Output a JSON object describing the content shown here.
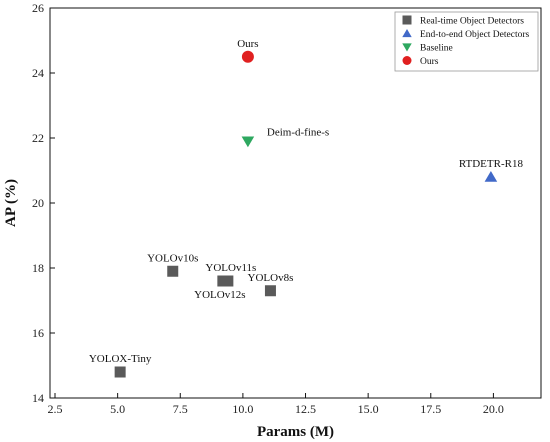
{
  "chart_data": {
    "type": "scatter",
    "title": "",
    "xlabel": "Params (M)",
    "ylabel": "AP (%)",
    "xlim": [
      2.3,
      21.9
    ],
    "ylim": [
      14,
      26
    ],
    "xticks": [
      "2.5",
      "5.0",
      "7.5",
      "10.0",
      "12.5",
      "15.0",
      "17.5",
      "20.0"
    ],
    "yticks": [
      "14",
      "16",
      "18",
      "20",
      "22",
      "24",
      "26"
    ],
    "grid": false,
    "legend_position": "top-right",
    "series": [
      {
        "name": "Real-time Object Detectors",
        "marker": "square",
        "color": "#5a5a5a",
        "points": [
          {
            "label": "YOLOX-Tiny",
            "x": 5.1,
            "y": 14.8
          },
          {
            "label": "YOLOv10s",
            "x": 7.2,
            "y": 17.9
          },
          {
            "label": "YOLOv11s",
            "x": 9.4,
            "y": 17.6
          },
          {
            "label": "YOLOv12s",
            "x": 9.2,
            "y": 17.6
          },
          {
            "label": "YOLOv8s",
            "x": 11.1,
            "y": 17.3
          }
        ]
      },
      {
        "name": "End-to-end Object Detectors",
        "marker": "triangle-up",
        "color": "#4169c8",
        "points": [
          {
            "label": "RTDETR-R18",
            "x": 19.9,
            "y": 20.8
          }
        ]
      },
      {
        "name": "Baseline",
        "marker": "triangle-down",
        "color": "#2ea860",
        "points": [
          {
            "label": "Deim-d-fine-s",
            "x": 10.2,
            "y": 21.9
          }
        ]
      },
      {
        "name": "Ours",
        "marker": "circle",
        "color": "#e02020",
        "points": [
          {
            "label": "Ours",
            "x": 10.2,
            "y": 24.5
          }
        ]
      }
    ]
  }
}
